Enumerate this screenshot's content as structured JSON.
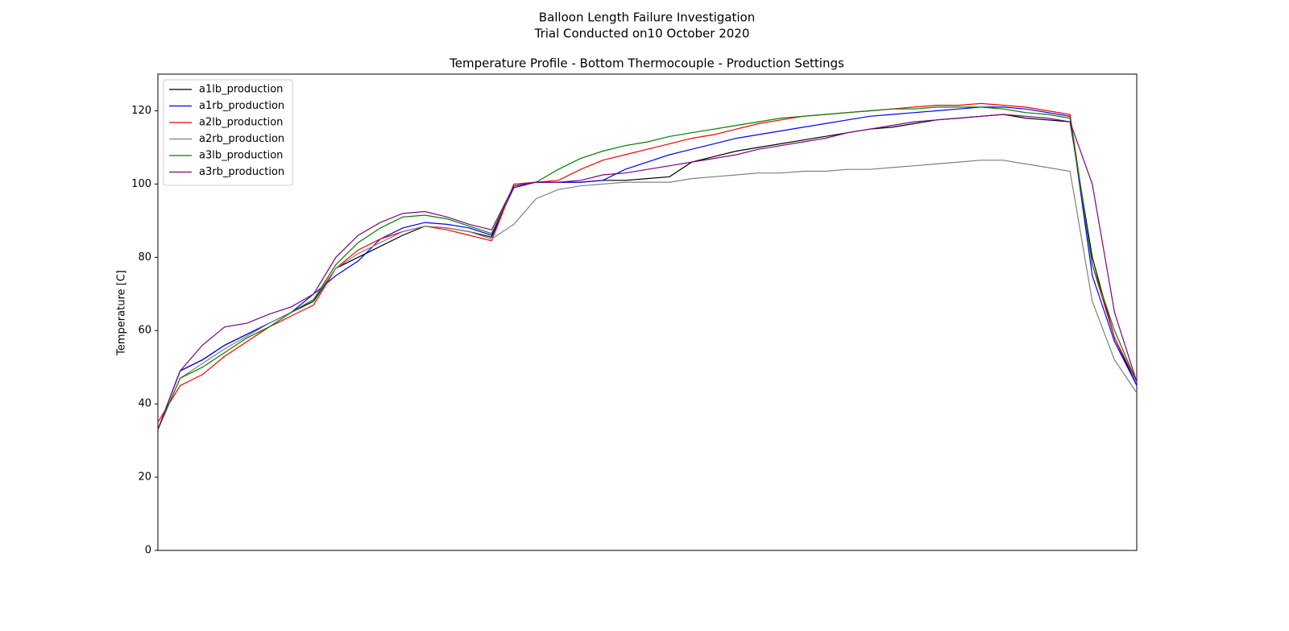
{
  "chart_data": {
    "type": "line",
    "title": "Balloon Length Failure Investigation",
    "subtitle": "Trial Conducted on10 October 2020",
    "axes_title": "Temperature Profile - Bottom Thermocouple - Production Settings",
    "y_label": "Temperature [C]",
    "ylim": [
      0,
      130
    ],
    "yticks": [
      0,
      20,
      40,
      60,
      80,
      100,
      120
    ],
    "legend": "upper left",
    "grid": false,
    "series": [
      {
        "name": "a1lb_production",
        "color": "#000000",
        "values": [
          33,
          49,
          52,
          56,
          59,
          62,
          65,
          68,
          77,
          80,
          83,
          86,
          88.5,
          88,
          87,
          85.5,
          99.5,
          100.5,
          100.5,
          100.5,
          101,
          101,
          101.5,
          102,
          106,
          107.5,
          109,
          110,
          111,
          112,
          113,
          114,
          115,
          115.5,
          116.5,
          117.5,
          118,
          118.5,
          119,
          118,
          117.5,
          117,
          80,
          58,
          45
        ]
      },
      {
        "name": "a1rb_production",
        "color": "#0000ff",
        "values": [
          33,
          49,
          52,
          56,
          59,
          62,
          65,
          70,
          75,
          79,
          85,
          88,
          89.5,
          89,
          88,
          86,
          99,
          100.5,
          100.5,
          100.5,
          101,
          104,
          106,
          108,
          109.5,
          111,
          112.5,
          113.5,
          114.5,
          115.5,
          116.5,
          117.5,
          118.5,
          119,
          119.5,
          120,
          120.5,
          121,
          121,
          120.5,
          119.5,
          118.5,
          75,
          57,
          45
        ]
      },
      {
        "name": "a2lb_production",
        "color": "#ff0000",
        "values": [
          35,
          45,
          48,
          53,
          57,
          61,
          64,
          67,
          77,
          82,
          85,
          87,
          88.5,
          87.5,
          86,
          84.5,
          100,
          100.5,
          101,
          104,
          106.5,
          108,
          109.5,
          111,
          112.5,
          113.5,
          115,
          116.5,
          117.5,
          118.5,
          119,
          119.5,
          120,
          120.5,
          121,
          121.5,
          121.5,
          122,
          121.5,
          121,
          120,
          119,
          78,
          58,
          46
        ]
      },
      {
        "name": "a2rb_production",
        "color": "#808080",
        "values": [
          33,
          47,
          51,
          55,
          58.5,
          62,
          65,
          68.5,
          77,
          81,
          84,
          87,
          88.5,
          88,
          87,
          85,
          89,
          96,
          98.5,
          99.5,
          100,
          100.5,
          100.5,
          100.5,
          101.5,
          102,
          102.5,
          103,
          103,
          103.5,
          103.5,
          104,
          104,
          104.5,
          105,
          105.5,
          106,
          106.5,
          106.5,
          105.5,
          104.5,
          103.5,
          68,
          52,
          43
        ]
      },
      {
        "name": "a3lb_production",
        "color": "#008000",
        "values": [
          33,
          47,
          50,
          54,
          58,
          61,
          65,
          68.5,
          78,
          84,
          88,
          91,
          91.5,
          90.5,
          88.5,
          86.5,
          99.5,
          100.5,
          104,
          107,
          109,
          110.5,
          111.5,
          113,
          114,
          115,
          116,
          117,
          118,
          118.5,
          119,
          119.5,
          120,
          120.5,
          120.5,
          121,
          121,
          121,
          120.5,
          119.5,
          119,
          118,
          78,
          60,
          46
        ]
      },
      {
        "name": "a3rb_production",
        "color": "#800080",
        "values": [
          33,
          49,
          56,
          61,
          62,
          64.5,
          66.5,
          70,
          80,
          86,
          89.5,
          92,
          92.5,
          91,
          89,
          87.5,
          99.5,
          100.5,
          100.5,
          101,
          102.5,
          103,
          104,
          105,
          106,
          107,
          108,
          109.5,
          110.5,
          111.5,
          112.5,
          114,
          115,
          116,
          117,
          117.5,
          118,
          118.5,
          119,
          118.5,
          118,
          117,
          100,
          65,
          46
        ]
      }
    ]
  }
}
